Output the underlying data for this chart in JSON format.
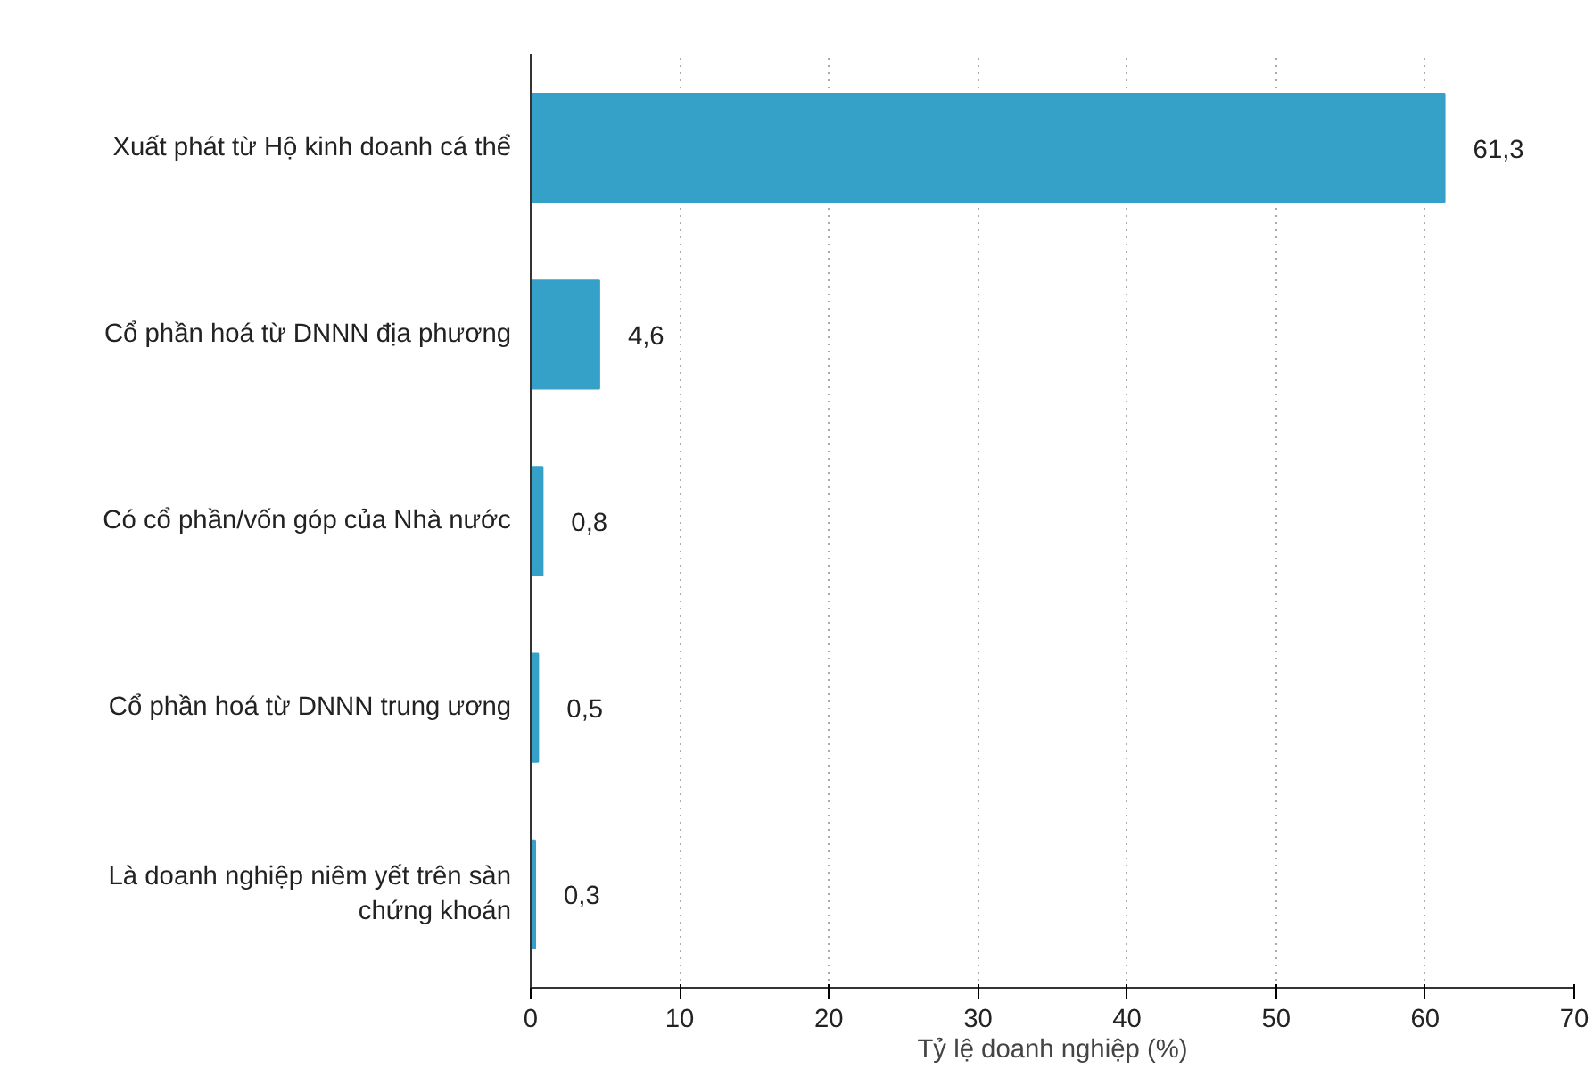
{
  "chart_data": {
    "type": "bar",
    "orientation": "horizontal",
    "xlabel": "Tỷ lệ doanh nghiệp (%)",
    "categories": [
      "Xuất phát từ Hộ kinh doanh cá thể",
      "Cổ phần hoá từ DNNN địa phương",
      "Có cổ phần/vốn góp của Nhà nước",
      "Cổ phần hoá từ DNNN trung ương",
      "Là doanh nghiệp niêm yết trên sàn chứng khoán"
    ],
    "values": [
      61.3,
      4.6,
      0.8,
      0.5,
      0.3
    ],
    "value_labels": [
      "61,3",
      "4,6",
      "0,8",
      "0,5",
      "0,3"
    ],
    "color": "#35a1c9",
    "xlim": [
      0,
      70
    ],
    "xticks": [
      0,
      10,
      20,
      30,
      40,
      50,
      60,
      70
    ],
    "grid": "x"
  }
}
